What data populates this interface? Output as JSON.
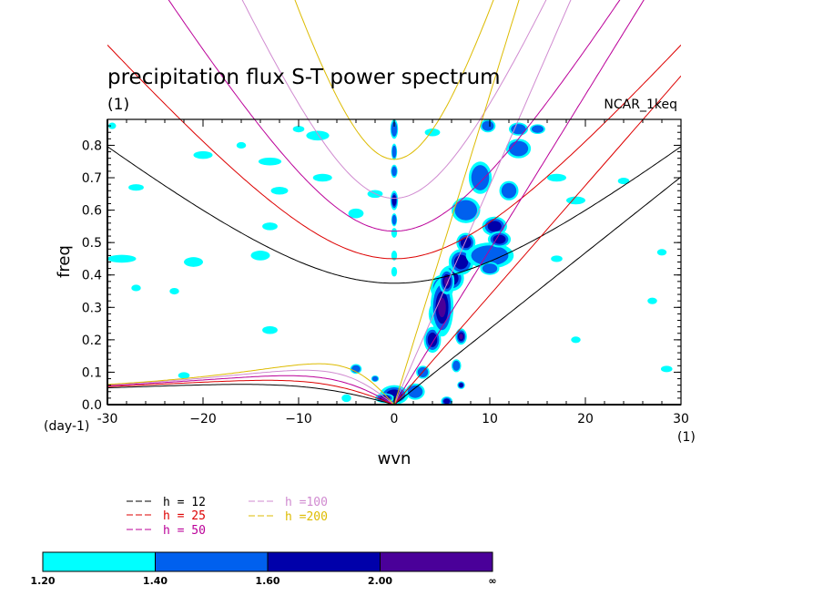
{
  "chart_data": {
    "type": "heatmap",
    "title": "precipitation flux S-T power spectrum",
    "subtitle_left": "(1)",
    "subtitle_right": "NCAR_1keq",
    "xlabel": "wvn",
    "ylabel": "freq",
    "x_unit_label": "(1)",
    "y_unit_label": "(day-1)",
    "xlim": [
      -30,
      30
    ],
    "ylim": [
      0,
      0.88
    ],
    "x_ticks": [
      -30,
      -20,
      -10,
      0,
      10,
      20,
      30
    ],
    "x_tick_labels": [
      "-30",
      "−20",
      "−10",
      "0",
      "10",
      "20",
      "30"
    ],
    "y_ticks": [
      0,
      0.1,
      0.2,
      0.3,
      0.4,
      0.5,
      0.6,
      0.7,
      0.8
    ],
    "y_tick_labels": [
      "0.0",
      "0.1",
      "0.2",
      "0.3",
      "0.4",
      "0.5",
      "0.6",
      "0.7",
      "0.8"
    ],
    "series": [
      {
        "name": "h = 12",
        "h": 12,
        "color": "#000000"
      },
      {
        "name": "h = 25",
        "h": 25,
        "color": "#dd0000"
      },
      {
        "name": "h = 50",
        "h": 50,
        "color": "#bb0099"
      },
      {
        "name": "h =100",
        "h": 100,
        "color": "#d08ad0"
      },
      {
        "name": "h =200",
        "h": 200,
        "color": "#ddbb00"
      }
    ],
    "colorbar": {
      "labels": [
        "1.20",
        "1.40",
        "1.60",
        "2.00",
        "∞"
      ],
      "colors": [
        "#00ffff",
        "#0060ee",
        "#0000aa",
        "#4a0099"
      ]
    },
    "blobs": [
      {
        "x": 0,
        "y": 0.85,
        "rx": 0.4,
        "ry": 0.03,
        "level": 1
      },
      {
        "x": 0,
        "y": 0.78,
        "rx": 0.3,
        "ry": 0.025,
        "level": 1
      },
      {
        "x": 0,
        "y": 0.72,
        "rx": 0.35,
        "ry": 0.02,
        "level": 1
      },
      {
        "x": 0,
        "y": 0.63,
        "rx": 0.4,
        "ry": 0.03,
        "level": 2
      },
      {
        "x": 0,
        "y": 0.57,
        "rx": 0.3,
        "ry": 0.02,
        "level": 1
      },
      {
        "x": 0,
        "y": 0.53,
        "rx": 0.3,
        "ry": 0.015,
        "level": 0
      },
      {
        "x": 0,
        "y": 0.46,
        "rx": 0.3,
        "ry": 0.015,
        "level": 0
      },
      {
        "x": 0,
        "y": 0.41,
        "rx": 0.3,
        "ry": 0.015,
        "level": 0
      },
      {
        "x": 0,
        "y": 0.03,
        "rx": 1.5,
        "ry": 0.03,
        "level": 2
      },
      {
        "x": -1,
        "y": 0.02,
        "rx": 1.0,
        "ry": 0.015,
        "level": 3
      },
      {
        "x": -4,
        "y": 0.11,
        "rx": 0.6,
        "ry": 0.015,
        "level": 1
      },
      {
        "x": -2,
        "y": 0.08,
        "rx": 0.4,
        "ry": 0.01,
        "level": 1
      },
      {
        "x": -5,
        "y": 0.02,
        "rx": 0.5,
        "ry": 0.012,
        "level": 0
      },
      {
        "x": 2.2,
        "y": 0.04,
        "rx": 1.0,
        "ry": 0.025,
        "level": 1
      },
      {
        "x": 3,
        "y": 0.1,
        "rx": 0.7,
        "ry": 0.02,
        "level": 1
      },
      {
        "x": 4,
        "y": 0.2,
        "rx": 0.9,
        "ry": 0.04,
        "level": 2
      },
      {
        "x": 4.5,
        "y": 0.28,
        "rx": 0.9,
        "ry": 0.04,
        "level": 2
      },
      {
        "x": 5,
        "y": 0.36,
        "rx": 1.2,
        "ry": 0.04,
        "level": 2
      },
      {
        "x": 6,
        "y": 0.39,
        "rx": 1.3,
        "ry": 0.04,
        "level": 2
      },
      {
        "x": 5,
        "y": 0.3,
        "rx": 1.2,
        "ry": 0.09,
        "level": 3
      },
      {
        "x": 5.5,
        "y": 0.38,
        "rx": 0.8,
        "ry": 0.04,
        "level": 3
      },
      {
        "x": 7,
        "y": 0.44,
        "rx": 1.3,
        "ry": 0.04,
        "level": 2
      },
      {
        "x": 7.5,
        "y": 0.5,
        "rx": 1.0,
        "ry": 0.03,
        "level": 2
      },
      {
        "x": 10,
        "y": 0.46,
        "rx": 2.5,
        "ry": 0.04,
        "level": 1
      },
      {
        "x": 10.5,
        "y": 0.55,
        "rx": 1.3,
        "ry": 0.03,
        "level": 2
      },
      {
        "x": 11,
        "y": 0.51,
        "rx": 1.2,
        "ry": 0.025,
        "level": 2
      },
      {
        "x": 10,
        "y": 0.42,
        "rx": 1.0,
        "ry": 0.02,
        "level": 1
      },
      {
        "x": 7.5,
        "y": 0.6,
        "rx": 1.5,
        "ry": 0.04,
        "level": 1
      },
      {
        "x": 9,
        "y": 0.7,
        "rx": 1.2,
        "ry": 0.05,
        "level": 1
      },
      {
        "x": 12,
        "y": 0.66,
        "rx": 1.0,
        "ry": 0.03,
        "level": 1
      },
      {
        "x": 13,
        "y": 0.79,
        "rx": 1.3,
        "ry": 0.03,
        "level": 1
      },
      {
        "x": 13,
        "y": 0.85,
        "rx": 1.0,
        "ry": 0.02,
        "level": 1
      },
      {
        "x": 9.8,
        "y": 0.86,
        "rx": 0.8,
        "ry": 0.02,
        "level": 1
      },
      {
        "x": 7,
        "y": 0.21,
        "rx": 0.6,
        "ry": 0.025,
        "level": 3
      },
      {
        "x": 5.5,
        "y": 0.01,
        "rx": 0.6,
        "ry": 0.015,
        "level": 2
      },
      {
        "x": 6.5,
        "y": 0.12,
        "rx": 0.5,
        "ry": 0.02,
        "level": 1
      },
      {
        "x": 7,
        "y": 0.06,
        "rx": 0.4,
        "ry": 0.012,
        "level": 2
      },
      {
        "x": -28.5,
        "y": 0.45,
        "rx": 1.5,
        "ry": 0.012,
        "level": 0
      },
      {
        "x": -21,
        "y": 0.44,
        "rx": 1.0,
        "ry": 0.015,
        "level": 0
      },
      {
        "x": -13,
        "y": 0.55,
        "rx": 0.8,
        "ry": 0.012,
        "level": 0
      },
      {
        "x": -14,
        "y": 0.46,
        "rx": 1.0,
        "ry": 0.015,
        "level": 0
      },
      {
        "x": -13,
        "y": 0.23,
        "rx": 0.8,
        "ry": 0.012,
        "level": 0
      },
      {
        "x": -27,
        "y": 0.67,
        "rx": 0.8,
        "ry": 0.01,
        "level": 0
      },
      {
        "x": -13,
        "y": 0.75,
        "rx": 1.2,
        "ry": 0.012,
        "level": 0
      },
      {
        "x": -20,
        "y": 0.77,
        "rx": 1.0,
        "ry": 0.012,
        "level": 0
      },
      {
        "x": -12,
        "y": 0.66,
        "rx": 0.9,
        "ry": 0.012,
        "level": 0
      },
      {
        "x": -7.5,
        "y": 0.7,
        "rx": 1.0,
        "ry": 0.012,
        "level": 0
      },
      {
        "x": -23,
        "y": 0.35,
        "rx": 0.5,
        "ry": 0.01,
        "level": 0
      },
      {
        "x": -8,
        "y": 0.83,
        "rx": 1.2,
        "ry": 0.015,
        "level": 0
      },
      {
        "x": -4,
        "y": 0.59,
        "rx": 0.8,
        "ry": 0.015,
        "level": 0
      },
      {
        "x": -2,
        "y": 0.65,
        "rx": 0.8,
        "ry": 0.012,
        "level": 0
      },
      {
        "x": -16,
        "y": 0.8,
        "rx": 0.5,
        "ry": 0.01,
        "level": 0
      },
      {
        "x": 17,
        "y": 0.7,
        "rx": 1.0,
        "ry": 0.012,
        "level": 0
      },
      {
        "x": 19,
        "y": 0.63,
        "rx": 1.0,
        "ry": 0.012,
        "level": 0
      },
      {
        "x": 17,
        "y": 0.45,
        "rx": 0.6,
        "ry": 0.01,
        "level": 0
      },
      {
        "x": 27,
        "y": 0.32,
        "rx": 0.5,
        "ry": 0.01,
        "level": 0
      },
      {
        "x": 19,
        "y": 0.2,
        "rx": 0.5,
        "ry": 0.01,
        "level": 0
      },
      {
        "x": 28,
        "y": 0.47,
        "rx": 0.5,
        "ry": 0.01,
        "level": 0
      },
      {
        "x": -22,
        "y": 0.09,
        "rx": 0.6,
        "ry": 0.01,
        "level": 0
      },
      {
        "x": 28.5,
        "y": 0.11,
        "rx": 0.6,
        "ry": 0.01,
        "level": 0
      },
      {
        "x": -27,
        "y": 0.36,
        "rx": 0.5,
        "ry": 0.01,
        "level": 0
      },
      {
        "x": -10,
        "y": 0.85,
        "rx": 0.6,
        "ry": 0.01,
        "level": 0
      },
      {
        "x": 15,
        "y": 0.85,
        "rx": 0.8,
        "ry": 0.015,
        "level": 1
      },
      {
        "x": -29.5,
        "y": 0.86,
        "rx": 0.4,
        "ry": 0.01,
        "level": 0
      },
      {
        "x": 4,
        "y": 0.84,
        "rx": 0.8,
        "ry": 0.012,
        "level": 0
      },
      {
        "x": 24,
        "y": 0.69,
        "rx": 0.6,
        "ry": 0.01,
        "level": 0
      }
    ]
  }
}
